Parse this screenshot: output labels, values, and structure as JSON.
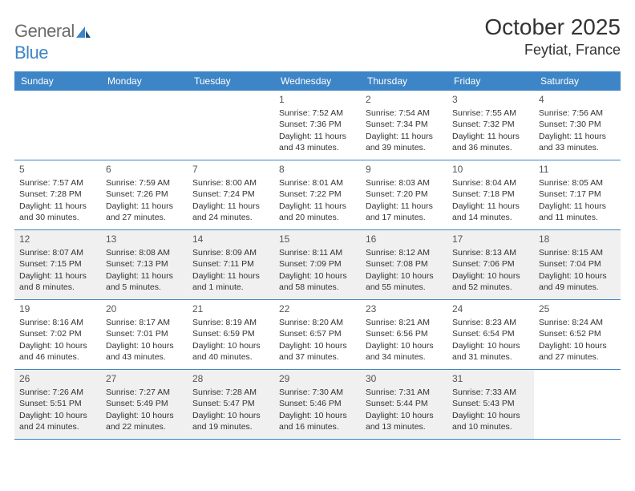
{
  "logo": {
    "text_gray": "General",
    "text_blue": "Blue"
  },
  "title": "October 2025",
  "location": "Feytiat, France",
  "weekdays": [
    "Sunday",
    "Monday",
    "Tuesday",
    "Wednesday",
    "Thursday",
    "Friday",
    "Saturday"
  ],
  "colors": {
    "header_bg": "#3d85c6",
    "shaded_bg": "#f0f0f0",
    "text": "#333333",
    "logo_gray": "#6b6b6b",
    "logo_blue": "#3d85c6"
  },
  "weeks": [
    [
      {
        "n": "",
        "sr": "",
        "ss": "",
        "d1": "",
        "d2": "",
        "empty": true
      },
      {
        "n": "",
        "sr": "",
        "ss": "",
        "d1": "",
        "d2": "",
        "empty": true
      },
      {
        "n": "",
        "sr": "",
        "ss": "",
        "d1": "",
        "d2": "",
        "empty": true
      },
      {
        "n": "1",
        "sr": "Sunrise: 7:52 AM",
        "ss": "Sunset: 7:36 PM",
        "d1": "Daylight: 11 hours",
        "d2": "and 43 minutes."
      },
      {
        "n": "2",
        "sr": "Sunrise: 7:54 AM",
        "ss": "Sunset: 7:34 PM",
        "d1": "Daylight: 11 hours",
        "d2": "and 39 minutes."
      },
      {
        "n": "3",
        "sr": "Sunrise: 7:55 AM",
        "ss": "Sunset: 7:32 PM",
        "d1": "Daylight: 11 hours",
        "d2": "and 36 minutes."
      },
      {
        "n": "4",
        "sr": "Sunrise: 7:56 AM",
        "ss": "Sunset: 7:30 PM",
        "d1": "Daylight: 11 hours",
        "d2": "and 33 minutes."
      }
    ],
    [
      {
        "n": "5",
        "sr": "Sunrise: 7:57 AM",
        "ss": "Sunset: 7:28 PM",
        "d1": "Daylight: 11 hours",
        "d2": "and 30 minutes."
      },
      {
        "n": "6",
        "sr": "Sunrise: 7:59 AM",
        "ss": "Sunset: 7:26 PM",
        "d1": "Daylight: 11 hours",
        "d2": "and 27 minutes."
      },
      {
        "n": "7",
        "sr": "Sunrise: 8:00 AM",
        "ss": "Sunset: 7:24 PM",
        "d1": "Daylight: 11 hours",
        "d2": "and 24 minutes."
      },
      {
        "n": "8",
        "sr": "Sunrise: 8:01 AM",
        "ss": "Sunset: 7:22 PM",
        "d1": "Daylight: 11 hours",
        "d2": "and 20 minutes."
      },
      {
        "n": "9",
        "sr": "Sunrise: 8:03 AM",
        "ss": "Sunset: 7:20 PM",
        "d1": "Daylight: 11 hours",
        "d2": "and 17 minutes."
      },
      {
        "n": "10",
        "sr": "Sunrise: 8:04 AM",
        "ss": "Sunset: 7:18 PM",
        "d1": "Daylight: 11 hours",
        "d2": "and 14 minutes."
      },
      {
        "n": "11",
        "sr": "Sunrise: 8:05 AM",
        "ss": "Sunset: 7:17 PM",
        "d1": "Daylight: 11 hours",
        "d2": "and 11 minutes."
      }
    ],
    [
      {
        "n": "12",
        "sr": "Sunrise: 8:07 AM",
        "ss": "Sunset: 7:15 PM",
        "d1": "Daylight: 11 hours",
        "d2": "and 8 minutes."
      },
      {
        "n": "13",
        "sr": "Sunrise: 8:08 AM",
        "ss": "Sunset: 7:13 PM",
        "d1": "Daylight: 11 hours",
        "d2": "and 5 minutes."
      },
      {
        "n": "14",
        "sr": "Sunrise: 8:09 AM",
        "ss": "Sunset: 7:11 PM",
        "d1": "Daylight: 11 hours",
        "d2": "and 1 minute."
      },
      {
        "n": "15",
        "sr": "Sunrise: 8:11 AM",
        "ss": "Sunset: 7:09 PM",
        "d1": "Daylight: 10 hours",
        "d2": "and 58 minutes."
      },
      {
        "n": "16",
        "sr": "Sunrise: 8:12 AM",
        "ss": "Sunset: 7:08 PM",
        "d1": "Daylight: 10 hours",
        "d2": "and 55 minutes."
      },
      {
        "n": "17",
        "sr": "Sunrise: 8:13 AM",
        "ss": "Sunset: 7:06 PM",
        "d1": "Daylight: 10 hours",
        "d2": "and 52 minutes."
      },
      {
        "n": "18",
        "sr": "Sunrise: 8:15 AM",
        "ss": "Sunset: 7:04 PM",
        "d1": "Daylight: 10 hours",
        "d2": "and 49 minutes."
      }
    ],
    [
      {
        "n": "19",
        "sr": "Sunrise: 8:16 AM",
        "ss": "Sunset: 7:02 PM",
        "d1": "Daylight: 10 hours",
        "d2": "and 46 minutes."
      },
      {
        "n": "20",
        "sr": "Sunrise: 8:17 AM",
        "ss": "Sunset: 7:01 PM",
        "d1": "Daylight: 10 hours",
        "d2": "and 43 minutes."
      },
      {
        "n": "21",
        "sr": "Sunrise: 8:19 AM",
        "ss": "Sunset: 6:59 PM",
        "d1": "Daylight: 10 hours",
        "d2": "and 40 minutes."
      },
      {
        "n": "22",
        "sr": "Sunrise: 8:20 AM",
        "ss": "Sunset: 6:57 PM",
        "d1": "Daylight: 10 hours",
        "d2": "and 37 minutes."
      },
      {
        "n": "23",
        "sr": "Sunrise: 8:21 AM",
        "ss": "Sunset: 6:56 PM",
        "d1": "Daylight: 10 hours",
        "d2": "and 34 minutes."
      },
      {
        "n": "24",
        "sr": "Sunrise: 8:23 AM",
        "ss": "Sunset: 6:54 PM",
        "d1": "Daylight: 10 hours",
        "d2": "and 31 minutes."
      },
      {
        "n": "25",
        "sr": "Sunrise: 8:24 AM",
        "ss": "Sunset: 6:52 PM",
        "d1": "Daylight: 10 hours",
        "d2": "and 27 minutes."
      }
    ],
    [
      {
        "n": "26",
        "sr": "Sunrise: 7:26 AM",
        "ss": "Sunset: 5:51 PM",
        "d1": "Daylight: 10 hours",
        "d2": "and 24 minutes."
      },
      {
        "n": "27",
        "sr": "Sunrise: 7:27 AM",
        "ss": "Sunset: 5:49 PM",
        "d1": "Daylight: 10 hours",
        "d2": "and 22 minutes."
      },
      {
        "n": "28",
        "sr": "Sunrise: 7:28 AM",
        "ss": "Sunset: 5:47 PM",
        "d1": "Daylight: 10 hours",
        "d2": "and 19 minutes."
      },
      {
        "n": "29",
        "sr": "Sunrise: 7:30 AM",
        "ss": "Sunset: 5:46 PM",
        "d1": "Daylight: 10 hours",
        "d2": "and 16 minutes."
      },
      {
        "n": "30",
        "sr": "Sunrise: 7:31 AM",
        "ss": "Sunset: 5:44 PM",
        "d1": "Daylight: 10 hours",
        "d2": "and 13 minutes."
      },
      {
        "n": "31",
        "sr": "Sunrise: 7:33 AM",
        "ss": "Sunset: 5:43 PM",
        "d1": "Daylight: 10 hours",
        "d2": "and 10 minutes."
      },
      {
        "n": "",
        "sr": "",
        "ss": "",
        "d1": "",
        "d2": "",
        "empty": true
      }
    ]
  ],
  "shaded_rows": [
    2,
    4
  ]
}
